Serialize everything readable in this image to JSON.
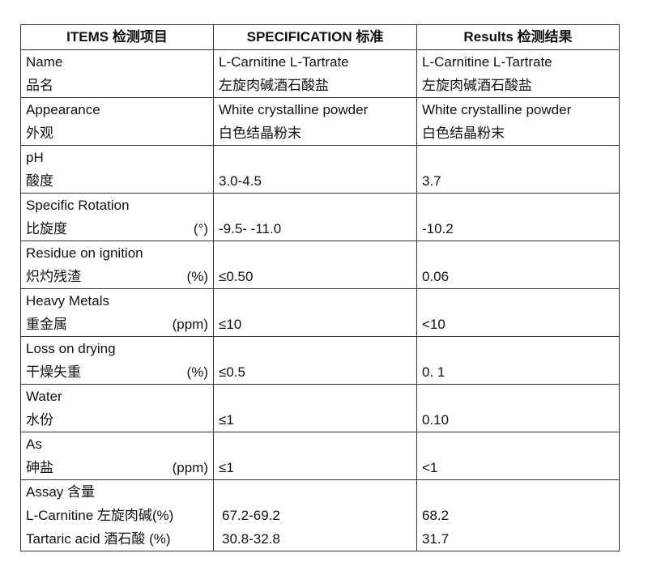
{
  "headers": [
    "ITEMS 检测项目",
    "SPECIFICATION 标准",
    "Results 检测结果"
  ],
  "rows": [
    {
      "name": "Name",
      "name_cn": "品名",
      "unit": "",
      "spec": [
        "L-Carnitine L-Tartrate",
        "左旋肉碱酒石酸盐"
      ],
      "result": [
        "L-Carnitine L-Tartrate",
        "左旋肉碱酒石酸盐"
      ]
    },
    {
      "name": "Appearance",
      "name_cn": "外观",
      "unit": "",
      "spec": [
        "White  crystalline  powder",
        "白色结晶粉末"
      ],
      "result": [
        "White crystalline powder",
        "白色结晶粉末"
      ]
    },
    {
      "name": "pH",
      "name_cn": "酸度",
      "unit": "",
      "spec": [
        "",
        "3.0-4.5"
      ],
      "result": [
        "",
        "3.7"
      ]
    },
    {
      "name": "Specific Rotation",
      "name_cn": "比旋度",
      "unit": "(°)",
      "spec": [
        "",
        "-9.5- -11.0"
      ],
      "result": [
        "",
        "-10.2"
      ]
    },
    {
      "name": "Residue on ignition",
      "name_cn": "炽灼残渣",
      "unit": "(%)",
      "spec": [
        "",
        "≤0.50"
      ],
      "result": [
        "",
        "0.06"
      ]
    },
    {
      "name": "Heavy Metals",
      "name_cn": "重金属",
      "unit": "(ppm)",
      "spec": [
        "",
        "≤10"
      ],
      "result": [
        "",
        "<10"
      ]
    },
    {
      "name": "Loss on drying",
      "name_cn": "干燥失重",
      "unit": "(%)",
      "spec": [
        "",
        "≤0.5"
      ],
      "result": [
        "",
        "0. 1"
      ]
    },
    {
      "name": "Water",
      "name_cn": "水份",
      "unit": "",
      "spec": [
        "",
        "≤1"
      ],
      "result": [
        "",
        "0.10"
      ]
    },
    {
      "name": "As",
      "name_cn": "砷盐",
      "unit": "(ppm)",
      "spec": [
        "",
        "≤1"
      ],
      "result": [
        "",
        "<1"
      ]
    }
  ],
  "assay": {
    "title": "Assay 含量",
    "lines": [
      {
        "label": "L-Carnitine 左旋肉碱(%)",
        "spec": "67.2-69.2",
        "result": "68.2"
      },
      {
        "label": "Tartaric acid 酒石酸  (%)",
        "spec": "30.8-32.8",
        "result": "31.7"
      }
    ]
  }
}
